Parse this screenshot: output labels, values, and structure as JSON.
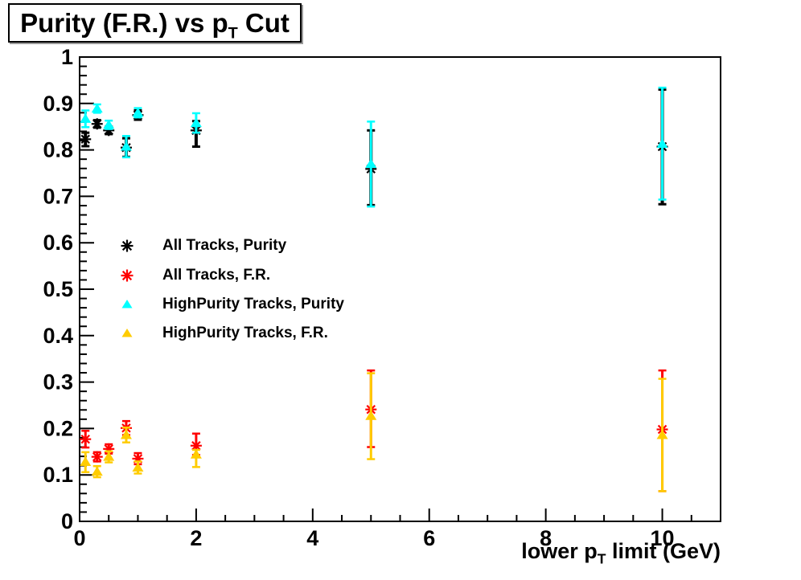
{
  "title": {
    "pre": "Purity (F.R.) vs p",
    "sub": "T",
    "post": " Cut"
  },
  "x_axis_title": {
    "pre": "lower p",
    "sub": "T",
    "post": " limit (GeV)"
  },
  "axes": {
    "x": {
      "min": 0,
      "max": 11,
      "major_ticks": [
        0,
        2,
        4,
        6,
        8,
        10
      ],
      "major_labels": [
        "0",
        "2",
        "4",
        "6",
        "8",
        "10"
      ],
      "minor_step": 0.5
    },
    "y": {
      "min": 0,
      "max": 1,
      "major_ticks": [
        0,
        0.1,
        0.2,
        0.3,
        0.4,
        0.5,
        0.6,
        0.7,
        0.8,
        0.9,
        1
      ],
      "major_labels": [
        "0",
        "0.1",
        "0.2",
        "0.3",
        "0.4",
        "0.5",
        "0.6",
        "0.7",
        "0.8",
        "0.9",
        "1"
      ],
      "minor_step": 0.02
    }
  },
  "chart_data": {
    "type": "scatter",
    "title": "Purity (F.R.) vs pT Cut",
    "xlabel": "lower pT limit (GeV)",
    "ylabel": "",
    "xlim": [
      0,
      11
    ],
    "ylim": [
      0,
      1
    ],
    "grid": false,
    "legend_position": "middle-left",
    "x": [
      0.1,
      0.3,
      0.5,
      0.8,
      1,
      2,
      5,
      10
    ],
    "series": [
      {
        "name": "All Tracks, Purity",
        "marker": "asterisk",
        "color": "#000000",
        "line_width": 4,
        "y": [
          0.823,
          0.856,
          0.842,
          0.805,
          0.875,
          0.842,
          0.759,
          0.807
        ],
        "ey_low": [
          0.015,
          0.008,
          0.008,
          0.02,
          0.01,
          0.035,
          0.078,
          0.124
        ],
        "ey_high": [
          0.014,
          0.008,
          0.008,
          0.02,
          0.01,
          0.02,
          0.083,
          0.123
        ]
      },
      {
        "name": "All Tracks, F.R.",
        "marker": "asterisk",
        "color": "#ff0000",
        "line_width": 3,
        "y": [
          0.177,
          0.139,
          0.156,
          0.201,
          0.135,
          0.163,
          0.241,
          0.198
        ],
        "ey_low": [
          0.018,
          0.01,
          0.01,
          0.015,
          0.012,
          0.02,
          0.081,
          0.133
        ],
        "ey_high": [
          0.018,
          0.01,
          0.01,
          0.015,
          0.012,
          0.026,
          0.084,
          0.127
        ]
      },
      {
        "name": "HighPurity Tracks, Purity",
        "marker": "triangle",
        "color": "#00ffff",
        "line_width": 3,
        "y": [
          0.867,
          0.889,
          0.854,
          0.807,
          0.88,
          0.858,
          0.77,
          0.813
        ],
        "ey_low": [
          0.018,
          0.009,
          0.009,
          0.023,
          0.01,
          0.021,
          0.092,
          0.12
        ],
        "ey_high": [
          0.018,
          0.009,
          0.009,
          0.023,
          0.01,
          0.021,
          0.091,
          0.121
        ]
      },
      {
        "name": "HighPurity Tracks, F.R.",
        "marker": "triangle",
        "color": "#ffcc00",
        "line_width": 3,
        "y": [
          0.128,
          0.107,
          0.139,
          0.186,
          0.116,
          0.144,
          0.227,
          0.186
        ],
        "ey_low": [
          0.022,
          0.012,
          0.012,
          0.016,
          0.013,
          0.027,
          0.093,
          0.121
        ],
        "ey_high": [
          0.021,
          0.012,
          0.012,
          0.016,
          0.013,
          0.01,
          0.092,
          0.121
        ]
      }
    ]
  }
}
